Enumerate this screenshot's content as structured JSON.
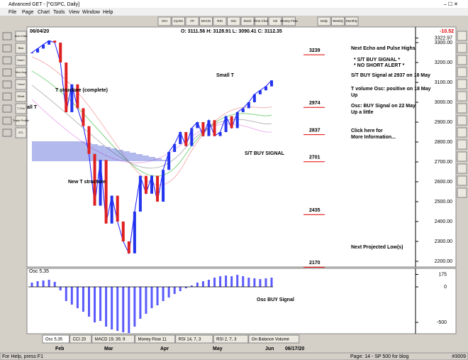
{
  "window": {
    "title": "Advanced GET - [^GSPC, Daily]",
    "menu": [
      "File",
      "Page",
      "Chart",
      "Tools",
      "View",
      "Window",
      "Help"
    ]
  },
  "toolbar": [
    "OCI",
    "Cycles",
    "JTI",
    "MACD",
    "RSI",
    "Osc",
    "Stock",
    "Time Chart",
    "Vol",
    "Money Flow",
    "Daily",
    "Weekly",
    "Monthly"
  ],
  "side_tools": [
    "Auto Data",
    "Bias",
    "Diach",
    "Mov Avg",
    "Trend",
    "Elliott",
    "T Chn",
    "Trade Profile",
    "XTL"
  ],
  "info": {
    "date": "06/04/20",
    "ohlc": "O: 3111.56  H: 3128.91  L: 3090.41  C: 3112.35",
    "change": "-10.52"
  },
  "price": {
    "ylim": [
      2180,
      3322.97
    ],
    "yticks": [
      3322.97,
      {
        "value": 3300,
        "label": "3300.00"
      },
      {
        "value": 3200,
        "label": "3200.00"
      },
      {
        "value": 3100,
        "label": "3100.00"
      },
      {
        "value": 3000,
        "label": "3000.00"
      },
      {
        "value": 2900,
        "label": "2900.00"
      },
      {
        "value": 2800,
        "label": "2800.00"
      },
      {
        "value": 2700,
        "label": "2700.00"
      },
      {
        "value": 2600,
        "label": "2600.00"
      },
      {
        "value": 2500,
        "label": "2500.00"
      },
      {
        "value": 2400,
        "label": "2400.00"
      },
      {
        "value": 2300,
        "label": "2300.00"
      },
      {
        "value": 2200,
        "label": "2200.00"
      }
    ],
    "closes": [
      3250,
      3270,
      3290,
      3310,
      3300,
      3200,
      2950,
      3090,
      2970,
      2880,
      2740,
      2480,
      2710,
      2390,
      2530,
      2400,
      2300,
      2240,
      2450,
      2630,
      2540,
      2630,
      2500,
      2660,
      2750,
      2790,
      2850,
      2780,
      2870,
      2900,
      2830,
      2910,
      2830,
      2850,
      2930,
      2870,
      2950,
      2970,
      3000,
      3040,
      3060,
      3080,
      3110
    ],
    "color": "#1a1aff",
    "levels": [
      3239,
      2974,
      2837,
      2701,
      2435,
      2170
    ]
  },
  "annotations": [
    "Small T",
    "T structure (complete)",
    "all T",
    "New T structure",
    "S/T BUY SIGNAL"
  ],
  "commentary": [
    "Next Echo and Pulse Highs",
    "* S/T BUY SIGNAL *",
    "* NO SHORT ALERT *",
    "S/T BUY Signal at 2937 on 18 May",
    "T volume Osc: positive on 18 May Up",
    "Osc: BUY Signal on 22 May Up a little",
    "Click here for More Information...",
    "Next Projected Low(s)"
  ],
  "osc": {
    "label": "Osc 5,35",
    "ylim": [
      -660,
      290
    ],
    "yticks": [
      175,
      0,
      -500
    ],
    "values": [
      60,
      80,
      90,
      100,
      70,
      -50,
      -200,
      -250,
      -300,
      -350,
      -420,
      -500,
      -480,
      -560,
      -600,
      -620,
      -640,
      -650,
      -560,
      -450,
      -380,
      -300,
      -260,
      -200,
      -150,
      -100,
      -60,
      -20,
      20,
      60,
      80,
      100,
      130,
      150,
      160,
      150,
      170,
      150,
      130,
      120,
      110,
      120,
      130
    ],
    "color": "#5a5aff",
    "note": "Osc BUY Signal"
  },
  "tabs": [
    "Osc 5,35",
    "CCI 20",
    "MACD 19, 39, 9",
    "Money Flow 11",
    "RSI 14, 7, 3",
    "RSI 2, 7, 3",
    "On Balance Volume"
  ],
  "x_labels": [
    "Feb",
    "Mar",
    "Apr",
    "May",
    "Jun",
    "06/17/20"
  ],
  "status": [
    "For Help, press F1",
    "Page: 14 - SP 500 for blog",
    "#3009"
  ]
}
